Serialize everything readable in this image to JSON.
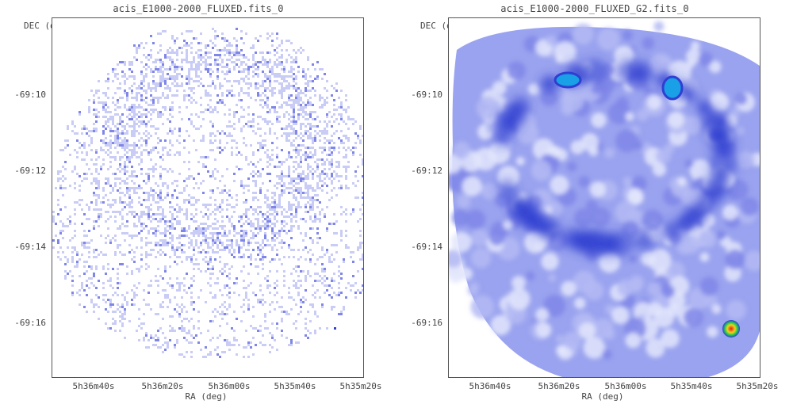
{
  "panels": [
    {
      "title": "acis_E1000-2000_FLUXED.fits_0",
      "y_axis_label": "DEC (deg)",
      "x_axis_label": "RA (deg)",
      "y_ticks": [
        "-69:10",
        "-69:12",
        "-69:14",
        "-69:16"
      ],
      "x_ticks": [
        "5h36m40s",
        "5h36m20s",
        "5h36m00s",
        "5h35m40s",
        "5h35m20s"
      ],
      "image_style": "sparse-counts"
    },
    {
      "title": "acis_E1000-2000_FLUXED_G2.fits_0",
      "y_axis_label": "DEC (deg)",
      "x_axis_label": "RA (deg)",
      "y_ticks": [
        "-69:10",
        "-69:12",
        "-69:14",
        "-69:16"
      ],
      "x_ticks": [
        "5h36m40s",
        "5h36m20s",
        "5h36m00s",
        "5h35m40s",
        "5h35m20s"
      ],
      "image_style": "smoothed"
    }
  ],
  "colors": {
    "faint": "#c9ccf5",
    "mid": "#7f86e8",
    "strong": "#2f3fd0",
    "peak": "#1aa0e6",
    "hot_core": "#e02020",
    "hot_ring": "#f2d21a",
    "hot_ring2": "#2bd14b"
  }
}
